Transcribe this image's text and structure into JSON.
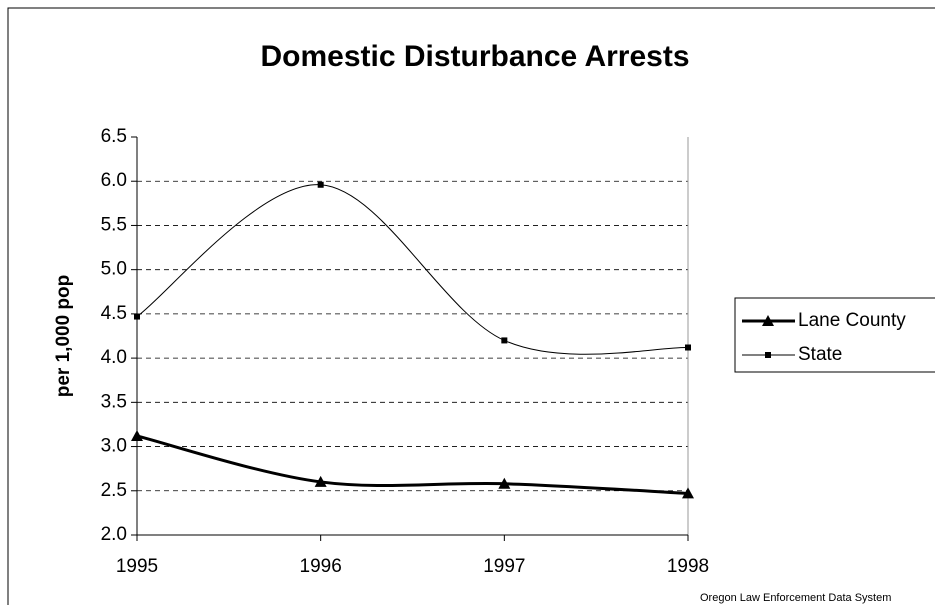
{
  "chart_data": {
    "type": "line",
    "title": "Domestic Disturbance Arrests",
    "y_label": "per 1,000 pop",
    "source": "Oregon Law Enforcement Data System",
    "x": [
      1995,
      1996,
      1997,
      1998
    ],
    "xlim": [
      1995,
      1998
    ],
    "xticks": [
      1995,
      1996,
      1997,
      1998
    ],
    "ylim": [
      2.0,
      6.5
    ],
    "yticks": [
      {
        "value": 2.0,
        "label": "2.0"
      },
      {
        "value": 2.5,
        "label": "2.5"
      },
      {
        "value": 3.0,
        "label": "3.0"
      },
      {
        "value": 3.5,
        "label": "3.5"
      },
      {
        "value": 4.0,
        "label": "4.0"
      },
      {
        "value": 4.5,
        "label": "4.5"
      },
      {
        "value": 5.0,
        "label": "5.0"
      },
      {
        "value": 5.5,
        "label": "5.5"
      },
      {
        "value": 6.0,
        "label": "6.0"
      },
      {
        "value": 6.5,
        "label": "6.5"
      }
    ],
    "grid": true,
    "smooth": true,
    "legend": "right",
    "series": [
      {
        "name": "Lane County",
        "color": "#000000",
        "marker": "triangle",
        "line_width": 3,
        "values": [
          3.12,
          2.6,
          2.58,
          2.47
        ]
      },
      {
        "name": "State",
        "color": "#000000",
        "marker": "square",
        "line_width": 1,
        "values": [
          4.47,
          5.96,
          4.2,
          4.12
        ]
      }
    ]
  }
}
